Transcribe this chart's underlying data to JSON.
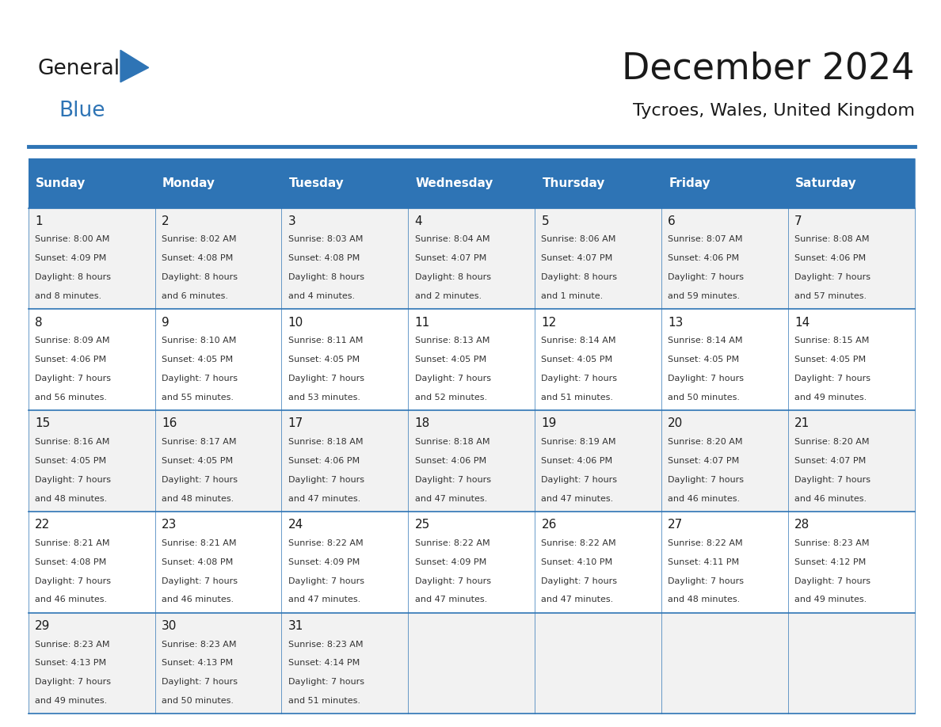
{
  "title": "December 2024",
  "subtitle": "Tycroes, Wales, United Kingdom",
  "days_of_week": [
    "Sunday",
    "Monday",
    "Tuesday",
    "Wednesday",
    "Thursday",
    "Friday",
    "Saturday"
  ],
  "header_bg": "#2E74B5",
  "header_text_color": "#FFFFFF",
  "cell_bg_odd": "#F2F2F2",
  "cell_bg_even": "#FFFFFF",
  "border_color": "#2E74B5",
  "text_color": "#333333",
  "title_color": "#1a1a1a",
  "logo_general_color": "#1a1a1a",
  "logo_blue_color": "#2E74B5",
  "calendar_data": [
    [
      {
        "day": 1,
        "sunrise": "8:00 AM",
        "sunset": "4:09 PM",
        "dl1": "Daylight: 8 hours",
        "dl2": "and 8 minutes."
      },
      {
        "day": 2,
        "sunrise": "8:02 AM",
        "sunset": "4:08 PM",
        "dl1": "Daylight: 8 hours",
        "dl2": "and 6 minutes."
      },
      {
        "day": 3,
        "sunrise": "8:03 AM",
        "sunset": "4:08 PM",
        "dl1": "Daylight: 8 hours",
        "dl2": "and 4 minutes."
      },
      {
        "day": 4,
        "sunrise": "8:04 AM",
        "sunset": "4:07 PM",
        "dl1": "Daylight: 8 hours",
        "dl2": "and 2 minutes."
      },
      {
        "day": 5,
        "sunrise": "8:06 AM",
        "sunset": "4:07 PM",
        "dl1": "Daylight: 8 hours",
        "dl2": "and 1 minute."
      },
      {
        "day": 6,
        "sunrise": "8:07 AM",
        "sunset": "4:06 PM",
        "dl1": "Daylight: 7 hours",
        "dl2": "and 59 minutes."
      },
      {
        "day": 7,
        "sunrise": "8:08 AM",
        "sunset": "4:06 PM",
        "dl1": "Daylight: 7 hours",
        "dl2": "and 57 minutes."
      }
    ],
    [
      {
        "day": 8,
        "sunrise": "8:09 AM",
        "sunset": "4:06 PM",
        "dl1": "Daylight: 7 hours",
        "dl2": "and 56 minutes."
      },
      {
        "day": 9,
        "sunrise": "8:10 AM",
        "sunset": "4:05 PM",
        "dl1": "Daylight: 7 hours",
        "dl2": "and 55 minutes."
      },
      {
        "day": 10,
        "sunrise": "8:11 AM",
        "sunset": "4:05 PM",
        "dl1": "Daylight: 7 hours",
        "dl2": "and 53 minutes."
      },
      {
        "day": 11,
        "sunrise": "8:13 AM",
        "sunset": "4:05 PM",
        "dl1": "Daylight: 7 hours",
        "dl2": "and 52 minutes."
      },
      {
        "day": 12,
        "sunrise": "8:14 AM",
        "sunset": "4:05 PM",
        "dl1": "Daylight: 7 hours",
        "dl2": "and 51 minutes."
      },
      {
        "day": 13,
        "sunrise": "8:14 AM",
        "sunset": "4:05 PM",
        "dl1": "Daylight: 7 hours",
        "dl2": "and 50 minutes."
      },
      {
        "day": 14,
        "sunrise": "8:15 AM",
        "sunset": "4:05 PM",
        "dl1": "Daylight: 7 hours",
        "dl2": "and 49 minutes."
      }
    ],
    [
      {
        "day": 15,
        "sunrise": "8:16 AM",
        "sunset": "4:05 PM",
        "dl1": "Daylight: 7 hours",
        "dl2": "and 48 minutes."
      },
      {
        "day": 16,
        "sunrise": "8:17 AM",
        "sunset": "4:05 PM",
        "dl1": "Daylight: 7 hours",
        "dl2": "and 48 minutes."
      },
      {
        "day": 17,
        "sunrise": "8:18 AM",
        "sunset": "4:06 PM",
        "dl1": "Daylight: 7 hours",
        "dl2": "and 47 minutes."
      },
      {
        "day": 18,
        "sunrise": "8:18 AM",
        "sunset": "4:06 PM",
        "dl1": "Daylight: 7 hours",
        "dl2": "and 47 minutes."
      },
      {
        "day": 19,
        "sunrise": "8:19 AM",
        "sunset": "4:06 PM",
        "dl1": "Daylight: 7 hours",
        "dl2": "and 47 minutes."
      },
      {
        "day": 20,
        "sunrise": "8:20 AM",
        "sunset": "4:07 PM",
        "dl1": "Daylight: 7 hours",
        "dl2": "and 46 minutes."
      },
      {
        "day": 21,
        "sunrise": "8:20 AM",
        "sunset": "4:07 PM",
        "dl1": "Daylight: 7 hours",
        "dl2": "and 46 minutes."
      }
    ],
    [
      {
        "day": 22,
        "sunrise": "8:21 AM",
        "sunset": "4:08 PM",
        "dl1": "Daylight: 7 hours",
        "dl2": "and 46 minutes."
      },
      {
        "day": 23,
        "sunrise": "8:21 AM",
        "sunset": "4:08 PM",
        "dl1": "Daylight: 7 hours",
        "dl2": "and 46 minutes."
      },
      {
        "day": 24,
        "sunrise": "8:22 AM",
        "sunset": "4:09 PM",
        "dl1": "Daylight: 7 hours",
        "dl2": "and 47 minutes."
      },
      {
        "day": 25,
        "sunrise": "8:22 AM",
        "sunset": "4:09 PM",
        "dl1": "Daylight: 7 hours",
        "dl2": "and 47 minutes."
      },
      {
        "day": 26,
        "sunrise": "8:22 AM",
        "sunset": "4:10 PM",
        "dl1": "Daylight: 7 hours",
        "dl2": "and 47 minutes."
      },
      {
        "day": 27,
        "sunrise": "8:22 AM",
        "sunset": "4:11 PM",
        "dl1": "Daylight: 7 hours",
        "dl2": "and 48 minutes."
      },
      {
        "day": 28,
        "sunrise": "8:23 AM",
        "sunset": "4:12 PM",
        "dl1": "Daylight: 7 hours",
        "dl2": "and 49 minutes."
      }
    ],
    [
      {
        "day": 29,
        "sunrise": "8:23 AM",
        "sunset": "4:13 PM",
        "dl1": "Daylight: 7 hours",
        "dl2": "and 49 minutes."
      },
      {
        "day": 30,
        "sunrise": "8:23 AM",
        "sunset": "4:13 PM",
        "dl1": "Daylight: 7 hours",
        "dl2": "and 50 minutes."
      },
      {
        "day": 31,
        "sunrise": "8:23 AM",
        "sunset": "4:14 PM",
        "dl1": "Daylight: 7 hours",
        "dl2": "and 51 minutes."
      },
      null,
      null,
      null,
      null
    ]
  ]
}
